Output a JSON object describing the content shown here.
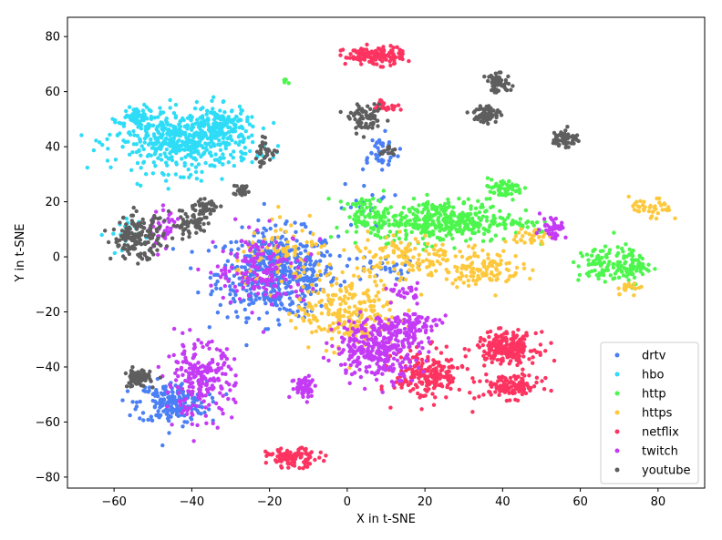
{
  "chart_data": {
    "type": "scatter",
    "title": "",
    "xlabel": "X in t-SNE",
    "ylabel": "Y in t-SNE",
    "xlim": [
      -72,
      92
    ],
    "ylim": [
      -84,
      87
    ],
    "xticks": [
      -60,
      -40,
      -20,
      0,
      20,
      40,
      60,
      80
    ],
    "yticks": [
      -80,
      -60,
      -40,
      -20,
      0,
      20,
      40,
      60,
      80
    ],
    "grid": false,
    "legend_position": "lower-right",
    "series": [
      {
        "name": "drtv",
        "color": "#4a7ff5",
        "clusters": [
          {
            "cx": -18,
            "cy": -6,
            "rx": 14,
            "ry": 14,
            "n": 520
          },
          {
            "cx": -45,
            "cy": -53,
            "rx": 8,
            "ry": 7,
            "n": 200
          },
          {
            "cx": 8,
            "cy": 38,
            "rx": 5,
            "ry": 6,
            "n": 40
          },
          {
            "cx": 8,
            "cy": -4,
            "rx": 8,
            "ry": 4,
            "n": 30
          },
          {
            "cx": 5,
            "cy": 18,
            "rx": 6,
            "ry": 8,
            "n": 20
          }
        ]
      },
      {
        "name": "hbo",
        "color": "#2fdcf7",
        "clusters": [
          {
            "cx": -42,
            "cy": 42,
            "rx": 16,
            "ry": 10,
            "n": 500
          },
          {
            "cx": -33,
            "cy": 48,
            "rx": 7,
            "ry": 6,
            "n": 120
          },
          {
            "cx": -54,
            "cy": 51,
            "rx": 3,
            "ry": 3,
            "n": 60
          },
          {
            "cx": -58,
            "cy": 8,
            "rx": 4,
            "ry": 7,
            "n": 20
          }
        ]
      },
      {
        "name": "http",
        "color": "#4cf64c",
        "clusters": [
          {
            "cx": 25,
            "cy": 13,
            "rx": 16,
            "ry": 7,
            "n": 380
          },
          {
            "cx": 40,
            "cy": 25,
            "rx": 5,
            "ry": 3,
            "n": 60
          },
          {
            "cx": 5,
            "cy": 15,
            "rx": 5,
            "ry": 6,
            "n": 70
          },
          {
            "cx": 65,
            "cy": -3,
            "rx": 5,
            "ry": 6,
            "n": 70
          },
          {
            "cx": 73,
            "cy": -3,
            "rx": 4,
            "ry": 6,
            "n": 80
          },
          {
            "cx": 44,
            "cy": 12,
            "rx": 5,
            "ry": 2,
            "n": 20
          },
          {
            "cx": -16,
            "cy": 64,
            "rx": 1,
            "ry": 1,
            "n": 6
          }
        ]
      },
      {
        "name": "https",
        "color": "#fdc83c",
        "clusters": [
          {
            "cx": 0,
            "cy": -20,
            "rx": 12,
            "ry": 12,
            "n": 260
          },
          {
            "cx": 35,
            "cy": -4,
            "rx": 9,
            "ry": 6,
            "n": 120
          },
          {
            "cx": 15,
            "cy": 0,
            "rx": 12,
            "ry": 8,
            "n": 120
          },
          {
            "cx": 78,
            "cy": 17,
            "rx": 5,
            "ry": 4,
            "n": 40
          },
          {
            "cx": 47,
            "cy": 7,
            "rx": 4,
            "ry": 3,
            "n": 30
          },
          {
            "cx": 73,
            "cy": -11,
            "rx": 4,
            "ry": 2,
            "n": 20
          },
          {
            "cx": -15,
            "cy": 0,
            "rx": 12,
            "ry": 10,
            "n": 90
          }
        ]
      },
      {
        "name": "netflix",
        "color": "#fd3360",
        "clusters": [
          {
            "cx": 41,
            "cy": -33,
            "rx": 7,
            "ry": 5,
            "n": 220
          },
          {
            "cx": 42,
            "cy": -47,
            "rx": 7,
            "ry": 4,
            "n": 120
          },
          {
            "cx": 21,
            "cy": -43,
            "rx": 8,
            "ry": 8,
            "n": 200
          },
          {
            "cx": 7,
            "cy": 73,
            "rx": 7,
            "ry": 3,
            "n": 130
          },
          {
            "cx": -14,
            "cy": -73,
            "rx": 6,
            "ry": 3,
            "n": 100
          },
          {
            "cx": 10,
            "cy": 55,
            "rx": 3,
            "ry": 2,
            "n": 25
          }
        ]
      },
      {
        "name": "twitch",
        "color": "#c43bf5",
        "clusters": [
          {
            "cx": 8,
            "cy": -33,
            "rx": 10,
            "ry": 10,
            "n": 320
          },
          {
            "cx": 16,
            "cy": -25,
            "rx": 7,
            "ry": 5,
            "n": 90
          },
          {
            "cx": -38,
            "cy": -45,
            "rx": 8,
            "ry": 12,
            "n": 220
          },
          {
            "cx": -11,
            "cy": -47,
            "rx": 3,
            "ry": 4,
            "n": 60
          },
          {
            "cx": 53,
            "cy": 11,
            "rx": 3,
            "ry": 4,
            "n": 40
          },
          {
            "cx": -22,
            "cy": -5,
            "rx": 11,
            "ry": 12,
            "n": 150
          },
          {
            "cx": -47,
            "cy": 10,
            "rx": 4,
            "ry": 6,
            "n": 40
          },
          {
            "cx": 15,
            "cy": -13,
            "rx": 3,
            "ry": 3,
            "n": 25
          }
        ]
      },
      {
        "name": "youtube",
        "color": "#5e5e5e",
        "clusters": [
          {
            "cx": -54,
            "cy": 7,
            "rx": 6,
            "ry": 7,
            "n": 170
          },
          {
            "cx": -40,
            "cy": 12,
            "rx": 5,
            "ry": 5,
            "n": 60
          },
          {
            "cx": -36,
            "cy": 18,
            "rx": 3,
            "ry": 3,
            "n": 40
          },
          {
            "cx": -54,
            "cy": -44,
            "rx": 3,
            "ry": 3,
            "n": 70
          },
          {
            "cx": 39,
            "cy": 63,
            "rx": 3,
            "ry": 3,
            "n": 60
          },
          {
            "cx": 36,
            "cy": 52,
            "rx": 3,
            "ry": 3,
            "n": 60
          },
          {
            "cx": 56,
            "cy": 43,
            "rx": 3,
            "ry": 3,
            "n": 60
          },
          {
            "cx": 5,
            "cy": 50,
            "rx": 4,
            "ry": 4,
            "n": 70
          },
          {
            "cx": -27,
            "cy": 24,
            "rx": 2,
            "ry": 2,
            "n": 30
          },
          {
            "cx": -21,
            "cy": 38,
            "rx": 3,
            "ry": 4,
            "n": 30
          },
          {
            "cx": 10,
            "cy": 39,
            "rx": 2,
            "ry": 2,
            "n": 15
          }
        ]
      }
    ]
  }
}
